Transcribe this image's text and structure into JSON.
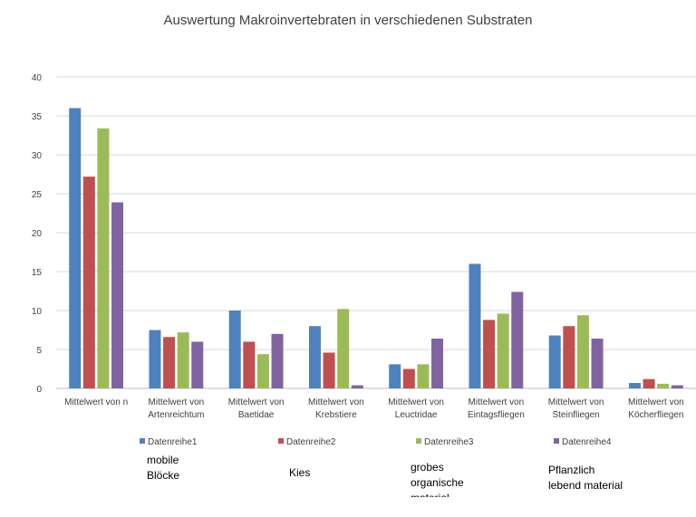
{
  "chart_data": {
    "type": "bar",
    "title": "Auswertung Makroinvertebraten in verschiedenen Substraten",
    "categories": [
      [
        "Mittelwert von n"
      ],
      [
        "Mittelwert von",
        "Artenreichtum"
      ],
      [
        "Mittelwert von",
        "Baetidae"
      ],
      [
        "Mittelwert von",
        "Krebstiere"
      ],
      [
        "Mittelwert von",
        "Leuctridae"
      ],
      [
        "Mittelwert von",
        "Eintagsfliegen"
      ],
      [
        "Mittelwert von",
        "Steinfliegen"
      ],
      [
        "Mittelwert von",
        "Köcherfliegen"
      ]
    ],
    "series": [
      {
        "name": "Datenreihe1",
        "color": "#4f81bd",
        "values": [
          36.0,
          7.5,
          10.0,
          8.0,
          3.1,
          16.0,
          6.8,
          0.7
        ]
      },
      {
        "name": "Datenreihe2",
        "color": "#c0504d",
        "values": [
          27.2,
          6.6,
          6.0,
          4.6,
          2.5,
          8.8,
          8.0,
          1.2
        ]
      },
      {
        "name": "Datenreihe3",
        "color": "#9bbb59",
        "values": [
          33.4,
          7.2,
          4.4,
          10.2,
          3.1,
          9.6,
          9.4,
          0.6
        ]
      },
      {
        "name": "Datenreihe4",
        "color": "#8064a2",
        "values": [
          23.9,
          6.0,
          7.0,
          0.4,
          6.4,
          12.4,
          6.4,
          0.4
        ]
      }
    ],
    "ylim": [
      0,
      40
    ],
    "yticks": [
      "0",
      "5",
      "10",
      "15",
      "20",
      "25",
      "30",
      "35",
      "40"
    ],
    "grid": true,
    "legend_position": "bottom"
  },
  "annotations": [
    {
      "text": "mobile\nBlöcke"
    },
    {
      "text": "Kies"
    },
    {
      "text": "grobes\norganische\nmaterial"
    },
    {
      "text": "Pflanzlich\nlebend material"
    }
  ]
}
